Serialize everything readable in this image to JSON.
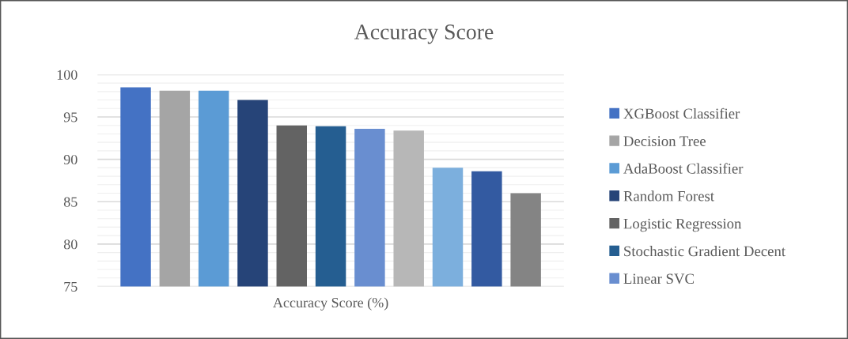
{
  "chart_data": {
    "type": "bar",
    "title": "Accuracy Score",
    "categories": [
      "Accuracy Score (%)"
    ],
    "series": [
      {
        "name": "XGBoost Classifier",
        "color": "#4472c4",
        "values": [
          98.5
        ]
      },
      {
        "name": "Decision Tree",
        "color": "#a5a5a5",
        "values": [
          98.1
        ]
      },
      {
        "name": "AdaBoost Classifier",
        "color": "#5b9bd5",
        "values": [
          98.1
        ]
      },
      {
        "name": "Random Forest",
        "color": "#264478",
        "values": [
          97.0
        ]
      },
      {
        "name": "Logistic Regression",
        "color": "#636363",
        "values": [
          94.0
        ]
      },
      {
        "name": "Stochastic Gradient Decent",
        "color": "#255e91",
        "values": [
          93.9
        ]
      },
      {
        "name": "Linear SVC",
        "color": "#698ed0",
        "values": [
          93.6
        ]
      },
      {
        "color": "#b7b7b7",
        "values": [
          93.4
        ]
      },
      {
        "color": "#7cafdd",
        "values": [
          89.0
        ]
      },
      {
        "color": "#335aa1",
        "values": [
          88.6
        ]
      },
      {
        "color": "#848484",
        "values": [
          86.0
        ]
      }
    ],
    "ylim": [
      75,
      100
    ],
    "yticks": [
      75,
      {
        "value": 76,
        "label": null
      },
      {
        "value": 77,
        "label": null
      },
      {
        "value": 78,
        "label": null
      },
      {
        "value": 79,
        "label": null
      },
      80,
      {
        "value": 81,
        "label": null
      },
      {
        "value": 82,
        "label": null
      },
      {
        "value": 83,
        "label": null
      },
      {
        "value": 84,
        "label": null
      },
      85,
      {
        "value": 86,
        "label": null
      },
      {
        "value": 87,
        "label": null
      },
      {
        "value": 88,
        "label": null
      },
      {
        "value": 89,
        "label": null
      },
      90,
      {
        "value": 91,
        "label": null
      },
      {
        "value": 92,
        "label": null
      },
      {
        "value": 93,
        "label": null
      },
      {
        "value": 94,
        "label": null
      },
      95,
      {
        "value": 96,
        "label": null
      },
      {
        "value": 97,
        "label": null
      },
      {
        "value": 98,
        "label": null
      },
      {
        "value": 99,
        "label": null
      },
      100
    ],
    "grid": "y",
    "legend": "right"
  }
}
